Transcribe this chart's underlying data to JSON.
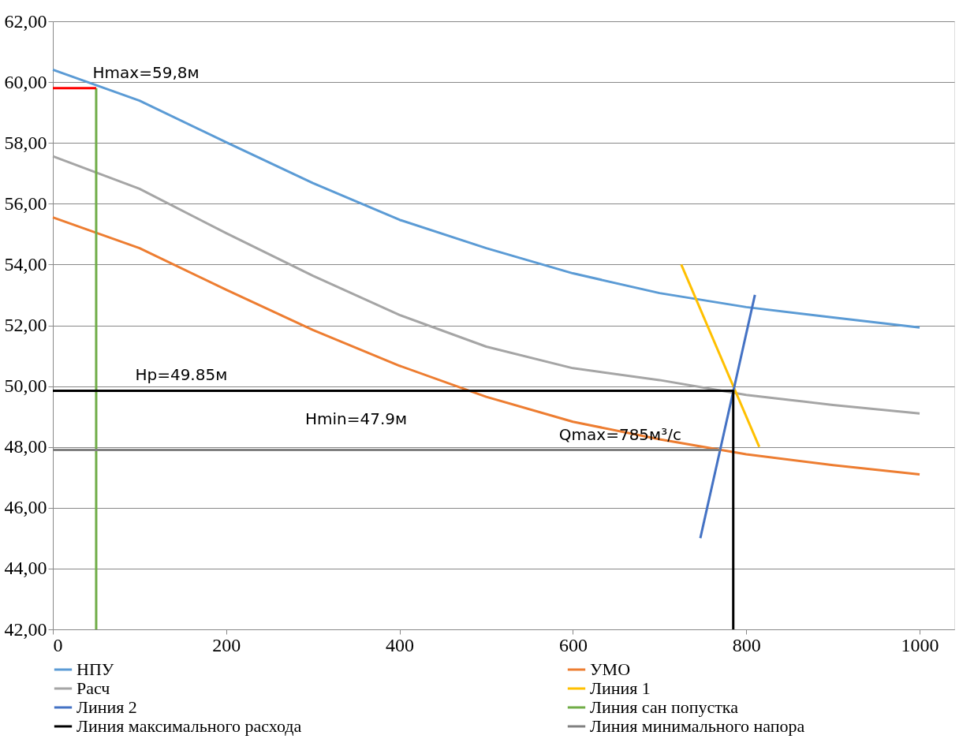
{
  "chart_data": {
    "type": "line",
    "xlim": [
      0,
      1040
    ],
    "xticks": [
      0,
      200,
      400,
      600,
      800,
      {
        "value": 1000,
        "label": "1000"
      }
    ],
    "ylim": [
      42,
      62
    ],
    "yticks": [
      {
        "value": 42,
        "label": "42,00"
      },
      {
        "value": 44,
        "label": "44,00"
      },
      {
        "value": 46,
        "label": "46,00"
      },
      {
        "value": 48,
        "label": "48,00"
      },
      {
        "value": 50,
        "label": "50,00"
      },
      {
        "value": 52,
        "label": "52,00"
      },
      {
        "value": 54,
        "label": "54,00"
      },
      {
        "value": 56,
        "label": "56,00"
      },
      {
        "value": 58,
        "label": "58,00"
      },
      {
        "value": 60,
        "label": "60,00"
      },
      {
        "value": 62,
        "label": "62,00"
      }
    ],
    "grid": "y",
    "legend": "bottom",
    "marker": "none",
    "line_style": "solid",
    "series": [
      {
        "name": "НПУ",
        "color": "#5b9bd5",
        "x": [
          0,
          100,
          200,
          300,
          400,
          500,
          600,
          700,
          800,
          900,
          1000
        ],
        "values": [
          60.41,
          59.39,
          58.02,
          56.68,
          55.47,
          54.54,
          53.71,
          53.06,
          52.6,
          52.26,
          51.93
        ]
      },
      {
        "name": "УМО",
        "color": "#ed7d31",
        "x": [
          0,
          100,
          200,
          300,
          400,
          500,
          600,
          700,
          800,
          900,
          1000
        ],
        "values": [
          55.55,
          54.54,
          53.17,
          51.85,
          50.67,
          49.65,
          48.83,
          48.25,
          47.76,
          47.4,
          47.1
        ]
      },
      {
        "name": "Расч",
        "color": "#a5a5a5",
        "x": [
          0,
          100,
          200,
          300,
          400,
          500,
          600,
          700,
          800,
          900,
          1000
        ],
        "values": [
          57.56,
          56.49,
          55.03,
          53.63,
          52.34,
          51.3,
          50.59,
          50.2,
          49.71,
          49.38,
          49.1
        ]
      },
      {
        "name": "Линия 1",
        "color": "#ffc000",
        "x": [
          725,
          815
        ],
        "values": [
          54,
          48
        ]
      },
      {
        "name": "Линия 2",
        "color": "#4472c4",
        "x": [
          747,
          810
        ],
        "values": [
          45,
          53
        ]
      },
      {
        "name": "Линия сан попустка",
        "color": "#70ad47",
        "x": [
          50,
          50
        ],
        "values": [
          42,
          59.8
        ]
      },
      {
        "name": "Линия максимального расхода",
        "color": "#000000",
        "x": [
          0,
          785,
          785
        ],
        "values": [
          49.85,
          49.85,
          42
        ]
      },
      {
        "name": "Линия минимального напора",
        "color": "#808080",
        "x": [
          0,
          770
        ],
        "values": [
          47.9,
          47.9
        ]
      },
      {
        "color": "#ff0000",
        "x": [
          0,
          50
        ],
        "values": [
          59.8,
          59.8
        ]
      }
    ],
    "annotations": [
      {
        "text": "Hmax=59,8м",
        "x": 46,
        "y": 59.8
      },
      {
        "text": "Hp=49.85м",
        "x": 95,
        "y": 49.85
      },
      "Hmin=47.9м",
      {
        "text": "Qmax=785м³/с",
        "x": 584,
        "y": 47.9
      }
    ]
  }
}
